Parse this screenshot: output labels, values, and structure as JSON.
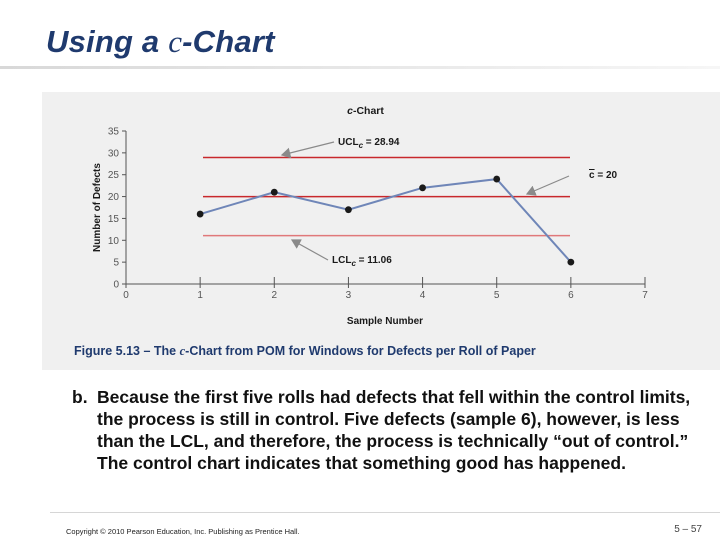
{
  "slide": {
    "title_prefix": "Using a ",
    "title_italic": "c",
    "title_suffix": "-Chart",
    "caption_prefix": "Figure 5.13 –  The ",
    "caption_italic": "c",
    "caption_suffix": "-Chart from POM for Windows for Defects per Roll of Paper",
    "body_marker": "b.",
    "body": "Because the first five rolls had defects that fell within the control limits, the process is still in control. Five defects (sample 6), however, is less than the LCL, and therefore, the process is technically “out of control.” The control chart indicates that something good has happened.",
    "copyright": "Copyright © 2010 Pearson Education, Inc. Publishing as Prentice Hall.",
    "page_number": "5 – 57"
  },
  "chart_data": {
    "type": "line",
    "title": "c-Chart",
    "xlabel": "Sample Number",
    "ylabel": "Number of Defects",
    "xlim": [
      0,
      7
    ],
    "ylim": [
      0,
      35
    ],
    "x_ticks": [
      0,
      1,
      2,
      3,
      4,
      5,
      6,
      7
    ],
    "y_ticks": [
      0,
      5,
      10,
      15,
      20,
      25,
      30,
      35
    ],
    "grid": false,
    "series": [
      {
        "x": [
          1,
          2,
          3,
          4,
          5,
          6
        ],
        "values": [
          16,
          21,
          17,
          22,
          24,
          5
        ]
      }
    ],
    "reference_lines": [
      {
        "label_main": "UCL",
        "label_sub": "c",
        "label_value": " = 28.94",
        "value": 28.94
      },
      {
        "label_main": "c",
        "label_sub": "",
        "label_value": " = 20",
        "value": 20,
        "overline": true
      },
      {
        "label_main": "LCL",
        "label_sub": "c",
        "label_value": " = 11.06",
        "value": 11.06
      }
    ],
    "colors": {
      "line": "#6f86b8",
      "marker": "#1a1a1a",
      "ucl": "#c8282c",
      "center": "#c8282c",
      "lcl": "#e0787a",
      "axis": "#555555",
      "arrow": "#8a8a8a"
    }
  }
}
